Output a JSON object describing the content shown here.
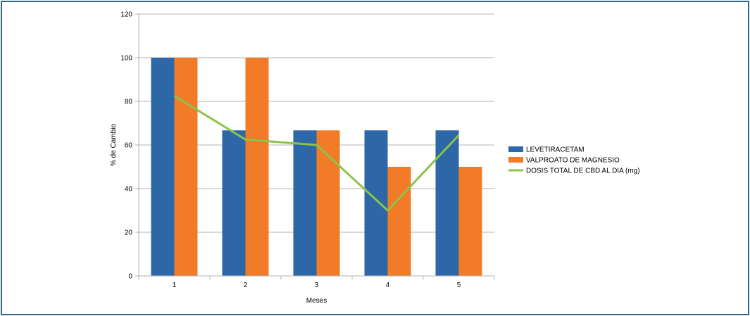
{
  "chart_data": {
    "type": "bar",
    "xlabel": "Meses",
    "ylabel": "% de Cambio",
    "categories": [
      "1",
      "2",
      "3",
      "4",
      "5"
    ],
    "ylim": [
      0,
      120
    ],
    "yticks": [
      "0",
      "20",
      "40",
      "60",
      "80",
      "100",
      "120"
    ],
    "grid": true,
    "legend_position": "right",
    "series": [
      {
        "name": "LEVETIRACETAM",
        "type": "bar",
        "color": "#2e67a8",
        "values": [
          100,
          66.7,
          66.7,
          66.7,
          66.7
        ]
      },
      {
        "name": "VALPROATO DE MAGNESIO",
        "type": "bar",
        "color": "#f27b27",
        "values": [
          100,
          100,
          66.7,
          50,
          50
        ]
      },
      {
        "name": "DOSIS TOTAL DE CBD AL DIA (mg)",
        "type": "line",
        "color": "#8bc34a",
        "values": [
          82.5,
          62.5,
          60,
          30,
          64.5
        ]
      }
    ]
  }
}
